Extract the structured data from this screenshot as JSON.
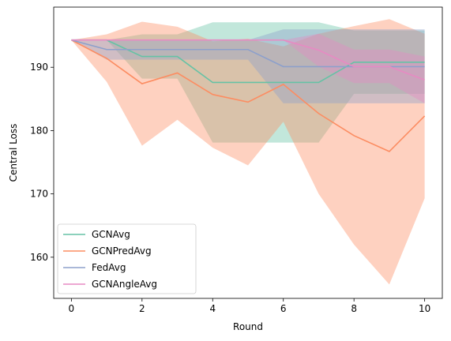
{
  "chart_data": {
    "type": "line",
    "xlabel": "Round",
    "ylabel": "Central Loss",
    "xlim": [
      -0.5,
      10.5
    ],
    "ylim": [
      153.5,
      199.5
    ],
    "xticks": [
      "0",
      "2",
      "4",
      "6",
      "8",
      "10"
    ],
    "yticks": [
      "160",
      "170",
      "180",
      "190"
    ],
    "grid": false,
    "legend_position": "lower-left",
    "x": [
      0,
      1,
      2,
      3,
      4,
      5,
      6,
      7,
      8,
      9,
      10
    ],
    "series": [
      {
        "name": "GCNAvg",
        "color": "#66c2a5",
        "values": [
          194.3,
          194.3,
          191.7,
          191.7,
          187.6,
          187.6,
          187.6,
          187.6,
          190.8,
          190.8,
          190.8
        ],
        "lower": [
          194.3,
          194.3,
          188.2,
          188.2,
          178.1,
          178.1,
          178.1,
          178.1,
          185.8,
          185.8,
          185.8
        ],
        "upper": [
          194.3,
          194.3,
          195.2,
          195.2,
          197.1,
          197.1,
          197.1,
          197.1,
          195.8,
          195.8,
          195.8
        ]
      },
      {
        "name": "GCNPredAvg",
        "color": "#fc8d62",
        "values": [
          194.3,
          191.4,
          187.4,
          189.1,
          185.7,
          184.5,
          187.3,
          182.7,
          179.2,
          176.7,
          182.3
        ],
        "lower": [
          194.3,
          187.7,
          177.6,
          181.7,
          177.3,
          174.5,
          181.4,
          170.0,
          162.0,
          155.7,
          169.3
        ],
        "upper": [
          194.3,
          195.2,
          197.2,
          196.4,
          194.1,
          194.5,
          193.3,
          195.3,
          196.5,
          197.6,
          195.3
        ]
      },
      {
        "name": "FedAvg",
        "color": "#8da0cb",
        "values": [
          194.3,
          192.8,
          192.8,
          192.8,
          192.8,
          192.8,
          190.1,
          190.1,
          190.1,
          190.1,
          190.1
        ],
        "lower": [
          194.3,
          191.2,
          191.2,
          191.2,
          191.2,
          191.2,
          184.3,
          184.3,
          184.3,
          184.3,
          184.3
        ],
        "upper": [
          194.3,
          194.3,
          194.3,
          194.3,
          194.3,
          194.3,
          196.0,
          196.0,
          196.0,
          196.0,
          196.0
        ]
      },
      {
        "name": "GCNAngleAvg",
        "color": "#e78ac3",
        "values": [
          194.3,
          194.3,
          194.3,
          194.3,
          194.3,
          194.3,
          194.3,
          192.7,
          190.1,
          190.1,
          188.0
        ],
        "lower": [
          194.3,
          194.3,
          194.3,
          194.3,
          194.3,
          194.3,
          194.3,
          190.1,
          187.5,
          187.5,
          184.3
        ],
        "upper": [
          194.3,
          194.3,
          194.3,
          194.3,
          194.3,
          194.3,
          194.3,
          195.3,
          192.8,
          192.8,
          191.7
        ]
      }
    ]
  }
}
